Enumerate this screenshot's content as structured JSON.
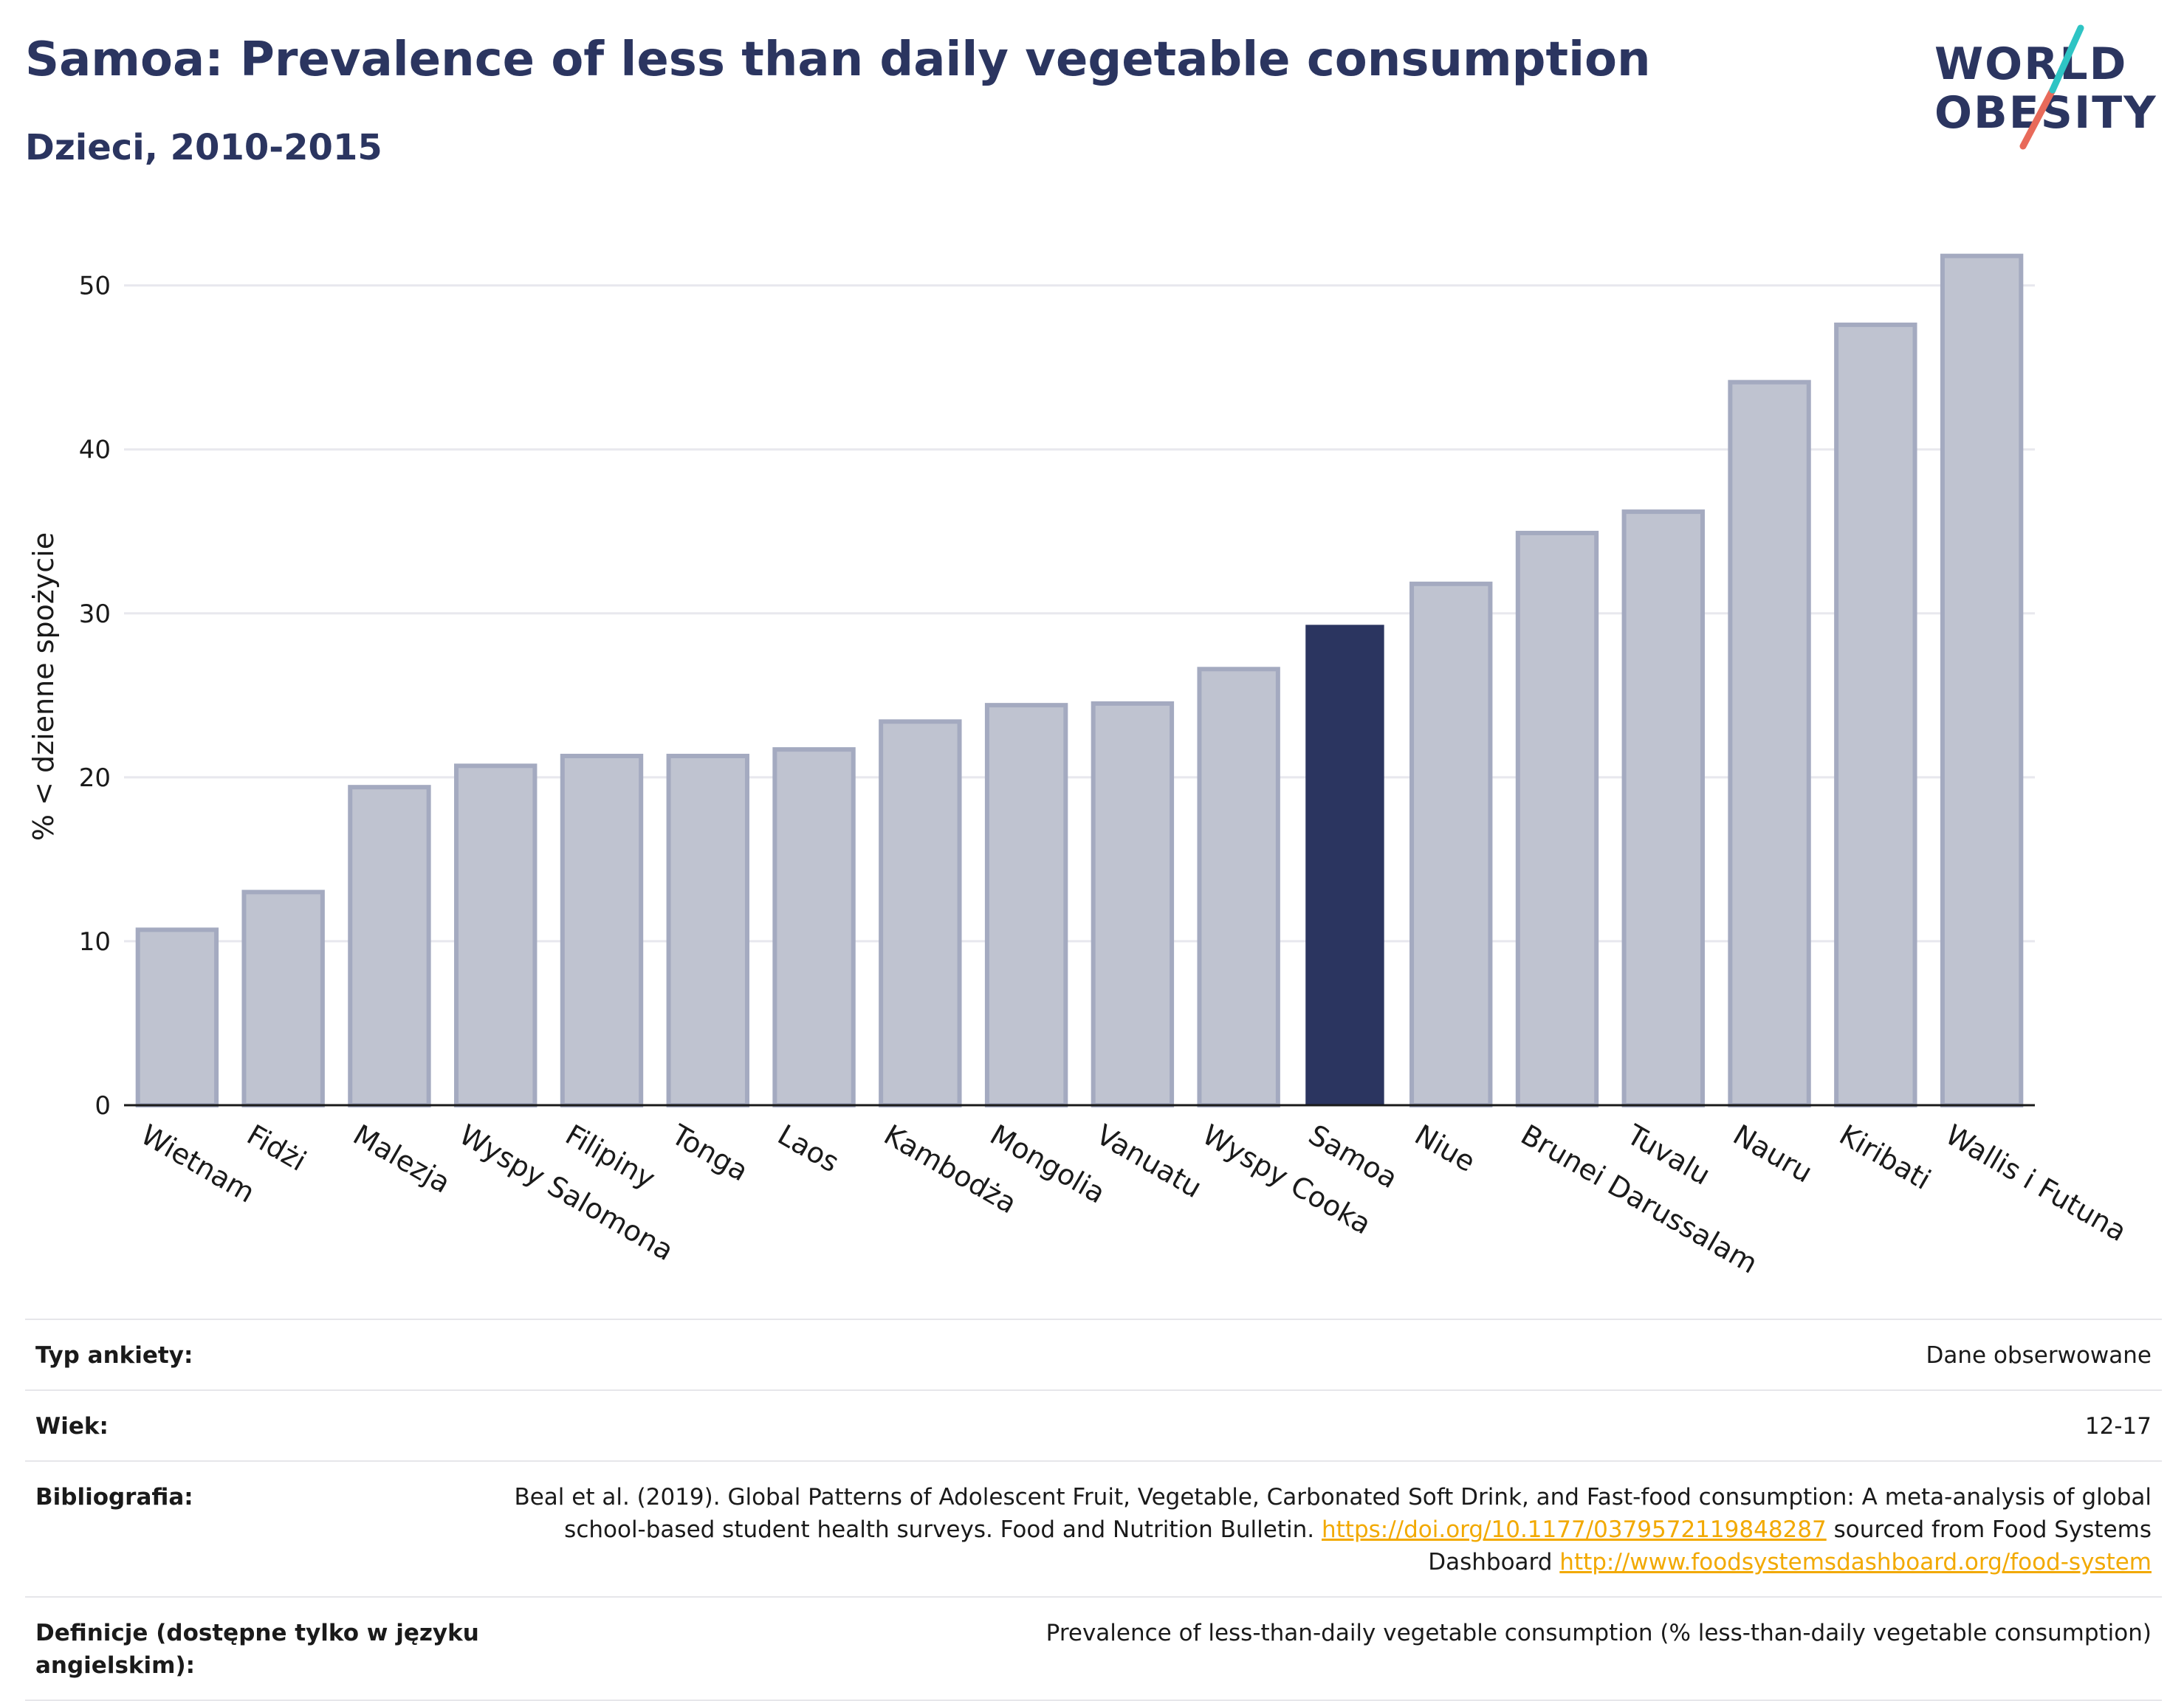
{
  "header": {
    "title": "Samoa: Prevalence of less than daily vegetable consumption",
    "subtitle": "Dzieci, 2010-2015"
  },
  "logo": {
    "line1": "WORLD",
    "line2": "OBESITY",
    "primary_color": "#2b3560",
    "accent_teal": "#2ec4c4",
    "accent_coral": "#e86a5a"
  },
  "chart_data": {
    "type": "bar",
    "ylabel": "% < dzienne spożycie",
    "xlabel": "",
    "ylim": [
      0,
      53
    ],
    "yticks": [
      0,
      10,
      20,
      30,
      40,
      50
    ],
    "grid": true,
    "highlight": "Samoa",
    "colors": {
      "bar_fill": "#bfc3d0",
      "bar_stroke": "#a4aac0",
      "highlight_fill": "#2b3560",
      "grid": "#e8e8ee",
      "axis": "#1a1a1a"
    },
    "categories": [
      "Wietnam",
      "Fidżi",
      "Malezja",
      "Wyspy Salomona",
      "Filipiny",
      "Tonga",
      "Laos",
      "Kambodża",
      "Mongolia",
      "Vanuatu",
      "Wyspy Cooka",
      "Samoa",
      "Niue",
      "Brunei Darussalam",
      "Tuvalu",
      "Nauru",
      "Kiribati",
      "Wallis i Futuna"
    ],
    "values": [
      10.7,
      13.0,
      19.4,
      20.7,
      21.3,
      21.3,
      21.7,
      23.4,
      24.4,
      24.5,
      26.6,
      29.3,
      31.8,
      34.9,
      36.2,
      44.1,
      47.6,
      51.8
    ]
  },
  "info": {
    "survey_label": "Typ ankiety:",
    "survey_value": "Dane obserwowane",
    "age_label": "Wiek:",
    "age_value": "12-17",
    "bib_label": "Bibliografia:",
    "bib_text1": "Beal et al. (2019). Global Patterns of Adolescent Fruit, Vegetable, Carbonated Soft Drink, and Fast-food consumption: A meta-analysis of global school-based student health surveys. Food and Nutrition Bulletin. ",
    "bib_link1": "https://doi.org/10.1177/0379572119848287",
    "bib_text2": " sourced from Food Systems Dashboard ",
    "bib_link2": "http://www.foodsystemsdashboard.org/food-system",
    "def_label": "Definicje (dostępne tylko w języku angielskim):",
    "def_value": "Prevalence of less-than-daily vegetable consumption (% less-than-daily vegetable consumption)"
  }
}
